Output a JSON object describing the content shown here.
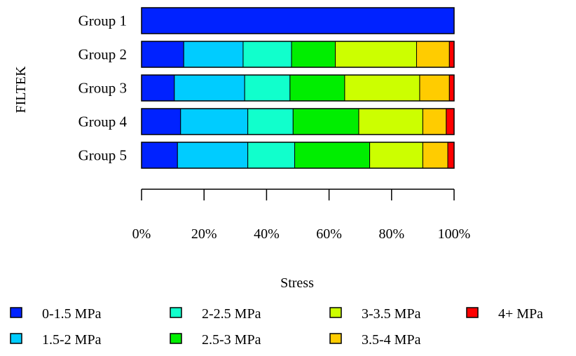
{
  "chart_data": {
    "type": "bar",
    "orientation": "horizontal",
    "stacked": "percent",
    "ylabel": "FILTEK",
    "xlabel": "Stress",
    "categories": [
      "Group 1",
      "Group 2",
      "Group 3",
      "Group 4",
      "Group 5"
    ],
    "x_ticks": [
      "0%",
      "20%",
      "40%",
      "60%",
      "80%",
      "100%"
    ],
    "xlim": [
      0,
      100
    ],
    "legend_position": "bottom",
    "series": [
      {
        "name": "0-1.5 MPa",
        "color": "#0022ff",
        "values": [
          100,
          13.5,
          10.5,
          12.5,
          11.5
        ]
      },
      {
        "name": "1.5-2 MPa",
        "color": "#00ccff",
        "values": [
          0,
          19,
          22.5,
          21.5,
          22.5
        ]
      },
      {
        "name": "2-2.5 MPa",
        "color": "#11ffcc",
        "values": [
          0,
          15.5,
          14.5,
          14.5,
          15
        ]
      },
      {
        "name": "2.5-3 MPa",
        "color": "#00ee00",
        "values": [
          0,
          14,
          17.5,
          21,
          24
        ]
      },
      {
        "name": "3-3.5 MPa",
        "color": "#ccff00",
        "values": [
          0,
          26,
          24,
          20.5,
          17
        ]
      },
      {
        "name": "3.5-4 MPa",
        "color": "#ffcc00",
        "values": [
          0,
          10.5,
          9.5,
          7.5,
          8
        ]
      },
      {
        "name": "4+ MPa",
        "color": "#ff0000",
        "values": [
          0,
          1.5,
          1.5,
          2.5,
          2
        ]
      }
    ]
  }
}
